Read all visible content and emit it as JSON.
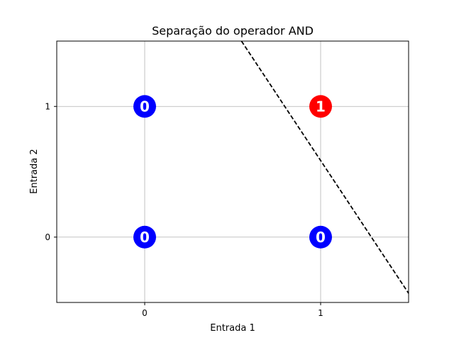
{
  "chart_data": {
    "type": "scatter",
    "title": "Separação do operador AND",
    "xlabel": "Entrada 1",
    "ylabel": "Entrada 2",
    "xlim": [
      -0.5,
      1.5
    ],
    "ylim": [
      -0.5,
      1.5
    ],
    "xticks": [
      0,
      1
    ],
    "xtick_labels": [
      "0",
      "1"
    ],
    "yticks": [
      0,
      1
    ],
    "ytick_labels": [
      "0",
      "1"
    ],
    "grid": true,
    "points": [
      {
        "x": 0,
        "y": 0,
        "label": "0",
        "color": "#0000ff"
      },
      {
        "x": 0,
        "y": 1,
        "label": "0",
        "color": "#0000ff"
      },
      {
        "x": 1,
        "y": 0,
        "label": "0",
        "color": "#0000ff"
      },
      {
        "x": 1,
        "y": 1,
        "label": "1",
        "color": "#ff0000"
      }
    ],
    "decision_boundary": {
      "style": "dashed",
      "color": "#000000",
      "x": [
        0.55,
        1.5
      ],
      "y": [
        1.5,
        -0.43
      ]
    }
  }
}
